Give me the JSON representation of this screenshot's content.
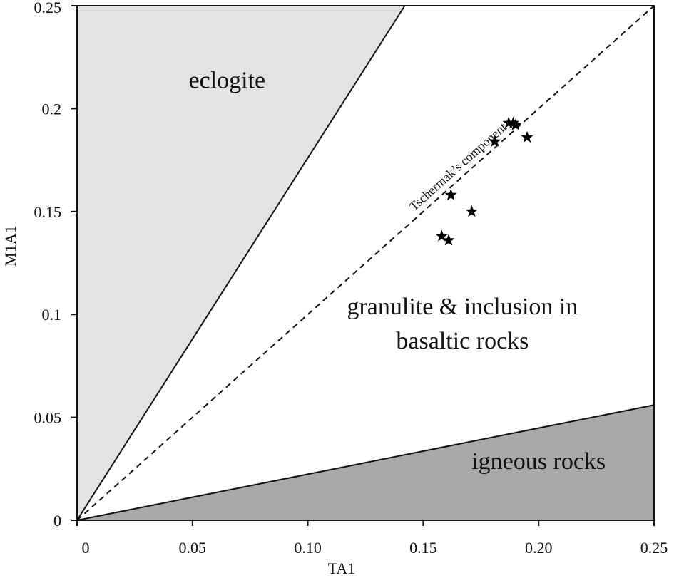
{
  "chart_data": {
    "type": "scatter",
    "xlabel": "TA1",
    "ylabel": "M1A1",
    "xlim": [
      0,
      0.25
    ],
    "ylim": [
      0,
      0.25
    ],
    "x_ticks": [
      {
        "value": 0,
        "label": "0"
      },
      {
        "value": 0.05,
        "label": "0.05"
      },
      {
        "value": 0.1,
        "label": "0.10"
      },
      {
        "value": 0.15,
        "label": "0.15"
      },
      {
        "value": 0.2,
        "label": "0.20"
      },
      {
        "value": 0.25,
        "label": "0.25"
      }
    ],
    "y_ticks": [
      {
        "value": 0,
        "label": "0"
      },
      {
        "value": 0.05,
        "label": "0.05"
      },
      {
        "value": 0.1,
        "label": "0.1"
      },
      {
        "value": 0.15,
        "label": "0.15"
      },
      {
        "value": 0.2,
        "label": "0.2"
      },
      {
        "value": 0.25,
        "label": "0.25"
      }
    ],
    "grid": false,
    "regions": [
      {
        "label": "eclogite",
        "color": "#e3e3e3",
        "label_at": [
          0.065,
          0.21
        ],
        "polygon": [
          [
            0,
            0
          ],
          [
            0.142,
            0.25
          ],
          [
            0,
            0.25
          ]
        ]
      },
      {
        "label": "igneous rocks",
        "color": "#a8a8a8",
        "label_at": [
          0.2,
          0.025
        ],
        "polygon": [
          [
            0,
            0
          ],
          [
            0.25,
            0.056
          ],
          [
            0.25,
            0
          ]
        ]
      }
    ],
    "region_texts": [
      {
        "lines": [
          "granulite & inclusion in",
          "basaltic rocks"
        ],
        "at": [
          0.167,
          0.1
        ]
      }
    ],
    "boundaries": [
      {
        "from": [
          0,
          0
        ],
        "to": [
          0.142,
          0.25
        ],
        "style": "solid"
      },
      {
        "from": [
          0,
          0
        ],
        "to": [
          0.25,
          0.056
        ],
        "style": "solid"
      }
    ],
    "reference_line": {
      "label": "Tschermak’s component",
      "from": [
        0,
        0
      ],
      "to": [
        0.25,
        0.25
      ],
      "style": "dashed",
      "label_at": [
        0.1675,
        0.1675
      ]
    },
    "series": [
      {
        "marker": "star",
        "color": "#000000",
        "points": [
          [
            0.187,
            0.193
          ],
          [
            0.189,
            0.193
          ],
          [
            0.19,
            0.192
          ],
          [
            0.181,
            0.184
          ],
          [
            0.195,
            0.186
          ],
          [
            0.162,
            0.158
          ],
          [
            0.171,
            0.15
          ],
          [
            0.158,
            0.138
          ],
          [
            0.161,
            0.136
          ]
        ]
      }
    ]
  }
}
